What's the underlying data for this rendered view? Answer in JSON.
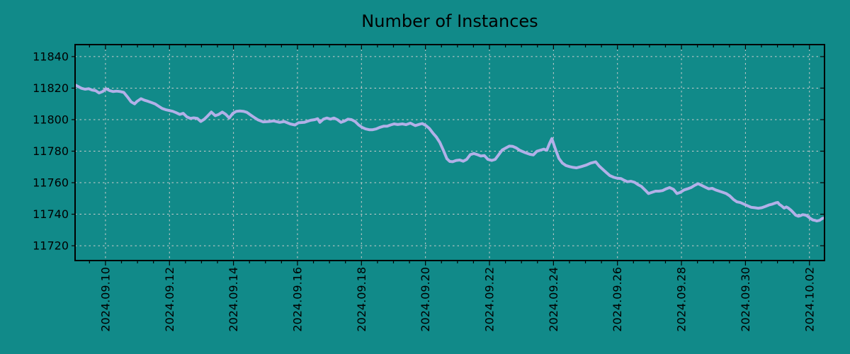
{
  "colors": {
    "background": "#118A89",
    "line": "#B2B0E8",
    "grid": "#CDCDCD",
    "axis": "#000000",
    "text": "#000000"
  },
  "chart_data": {
    "type": "line",
    "title": "Number of Instances",
    "xlabel": "",
    "ylabel": "",
    "x_unit": "days since 2024-09-09 00:00",
    "xlim": [
      0.05,
      23.47
    ],
    "ylim": [
      11710.6,
      11847.6
    ],
    "grid": true,
    "legend": "none",
    "y_ticks": [
      11720,
      11740,
      11760,
      11780,
      11800,
      11820,
      11840
    ],
    "x_ticks": [
      {
        "day": 1,
        "label": "2024.09.10"
      },
      {
        "day": 3,
        "label": "2024.09.12"
      },
      {
        "day": 5,
        "label": "2024.09.14"
      },
      {
        "day": 7,
        "label": "2024.09.16"
      },
      {
        "day": 9,
        "label": "2024.09.18"
      },
      {
        "day": 11,
        "label": "2024.09.20"
      },
      {
        "day": 13,
        "label": "2024.09.22"
      },
      {
        "day": 15,
        "label": "2024.09.24"
      },
      {
        "day": 17,
        "label": "2024.09.26"
      },
      {
        "day": 19,
        "label": "2024.09.28"
      },
      {
        "day": 21,
        "label": "2024.09.30"
      },
      {
        "day": 23,
        "label": "2024.10.02"
      }
    ],
    "minor_tick_interval_days": 0.5,
    "series": [
      {
        "name": "instances",
        "color": "#B2B0E8",
        "points": [
          [
            0.07,
            11821.8
          ],
          [
            0.25,
            11819.9
          ],
          [
            0.36,
            11819.3
          ],
          [
            0.47,
            11819.6
          ],
          [
            0.58,
            11818.8
          ],
          [
            0.69,
            11818.4
          ],
          [
            0.8,
            11816.9
          ],
          [
            0.91,
            11817.8
          ],
          [
            1.02,
            11819.6
          ],
          [
            1.13,
            11818.4
          ],
          [
            1.24,
            11817.8
          ],
          [
            1.35,
            11818.1
          ],
          [
            1.46,
            11817.8
          ],
          [
            1.57,
            11817.3
          ],
          [
            1.69,
            11814.3
          ],
          [
            1.8,
            11811.3
          ],
          [
            1.91,
            11810.0
          ],
          [
            1.99,
            11811.6
          ],
          [
            2.11,
            11813.3
          ],
          [
            2.22,
            11812.3
          ],
          [
            2.33,
            11811.6
          ],
          [
            2.44,
            11810.8
          ],
          [
            2.55,
            11810.0
          ],
          [
            2.66,
            11808.5
          ],
          [
            2.77,
            11807.1
          ],
          [
            2.88,
            11806.3
          ],
          [
            2.99,
            11805.8
          ],
          [
            3.1,
            11805.3
          ],
          [
            3.21,
            11804.4
          ],
          [
            3.32,
            11803.3
          ],
          [
            3.43,
            11804.0
          ],
          [
            3.54,
            11801.8
          ],
          [
            3.65,
            11800.8
          ],
          [
            3.76,
            11801.1
          ],
          [
            3.87,
            11800.8
          ],
          [
            3.98,
            11798.8
          ],
          [
            4.09,
            11800.3
          ],
          [
            4.2,
            11802.5
          ],
          [
            4.31,
            11804.8
          ],
          [
            4.43,
            11802.5
          ],
          [
            4.54,
            11803.3
          ],
          [
            4.65,
            11804.8
          ],
          [
            4.76,
            11803.3
          ],
          [
            4.87,
            11801.0
          ],
          [
            4.98,
            11804.0
          ],
          [
            5.09,
            11805.3
          ],
          [
            5.2,
            11805.5
          ],
          [
            5.31,
            11805.3
          ],
          [
            5.42,
            11804.6
          ],
          [
            5.53,
            11803.0
          ],
          [
            5.64,
            11801.5
          ],
          [
            5.77,
            11799.8
          ],
          [
            5.93,
            11798.6
          ],
          [
            6.11,
            11798.8
          ],
          [
            6.26,
            11799.2
          ],
          [
            6.44,
            11798.3
          ],
          [
            6.59,
            11798.8
          ],
          [
            6.77,
            11797.3
          ],
          [
            6.92,
            11796.6
          ],
          [
            7.03,
            11798.0
          ],
          [
            7.21,
            11798.3
          ],
          [
            7.41,
            11799.6
          ],
          [
            7.54,
            11800.0
          ],
          [
            7.63,
            11800.6
          ],
          [
            7.7,
            11798.3
          ],
          [
            7.81,
            11800.3
          ],
          [
            7.92,
            11801.0
          ],
          [
            8.03,
            11800.3
          ],
          [
            8.14,
            11801.0
          ],
          [
            8.25,
            11800.0
          ],
          [
            8.36,
            11798.3
          ],
          [
            8.47,
            11799.1
          ],
          [
            8.58,
            11800.3
          ],
          [
            8.69,
            11800.0
          ],
          [
            8.8,
            11798.8
          ],
          [
            8.91,
            11796.6
          ],
          [
            9.02,
            11795.1
          ],
          [
            9.13,
            11794.1
          ],
          [
            9.24,
            11793.6
          ],
          [
            9.35,
            11793.6
          ],
          [
            9.46,
            11794.1
          ],
          [
            9.57,
            11795.1
          ],
          [
            9.69,
            11795.8
          ],
          [
            9.8,
            11795.8
          ],
          [
            9.91,
            11796.6
          ],
          [
            10.02,
            11797.3
          ],
          [
            10.13,
            11796.9
          ],
          [
            10.28,
            11797.3
          ],
          [
            10.39,
            11796.8
          ],
          [
            10.53,
            11797.8
          ],
          [
            10.68,
            11796.2
          ],
          [
            10.81,
            11797.0
          ],
          [
            10.9,
            11797.5
          ],
          [
            11.01,
            11796.3
          ],
          [
            11.12,
            11794.4
          ],
          [
            11.23,
            11791.5
          ],
          [
            11.34,
            11789.0
          ],
          [
            11.45,
            11785.5
          ],
          [
            11.56,
            11780.5
          ],
          [
            11.67,
            11775.2
          ],
          [
            11.76,
            11773.5
          ],
          [
            11.85,
            11773.3
          ],
          [
            11.96,
            11774.1
          ],
          [
            12.07,
            11774.4
          ],
          [
            12.18,
            11773.6
          ],
          [
            12.29,
            11774.8
          ],
          [
            12.4,
            11777.8
          ],
          [
            12.51,
            11778.5
          ],
          [
            12.62,
            11777.8
          ],
          [
            12.73,
            11776.9
          ],
          [
            12.84,
            11777.2
          ],
          [
            12.95,
            11774.8
          ],
          [
            13.07,
            11774.1
          ],
          [
            13.18,
            11774.8
          ],
          [
            13.29,
            11777.8
          ],
          [
            13.4,
            11780.8
          ],
          [
            13.51,
            11782.0
          ],
          [
            13.62,
            11783.2
          ],
          [
            13.73,
            11783.0
          ],
          [
            13.84,
            11782.0
          ],
          [
            13.95,
            11780.5
          ],
          [
            14.11,
            11779.1
          ],
          [
            14.26,
            11778.0
          ],
          [
            14.37,
            11777.6
          ],
          [
            14.48,
            11779.9
          ],
          [
            14.59,
            11780.6
          ],
          [
            14.7,
            11781.3
          ],
          [
            14.79,
            11780.6
          ],
          [
            14.88,
            11785.0
          ],
          [
            14.95,
            11788.0
          ],
          [
            15.06,
            11781.3
          ],
          [
            15.17,
            11775.4
          ],
          [
            15.28,
            11772.4
          ],
          [
            15.39,
            11770.9
          ],
          [
            15.5,
            11770.2
          ],
          [
            15.61,
            11769.7
          ],
          [
            15.72,
            11769.4
          ],
          [
            15.87,
            11770.2
          ],
          [
            16.03,
            11771.2
          ],
          [
            16.16,
            11772.4
          ],
          [
            16.32,
            11773.2
          ],
          [
            16.43,
            11770.5
          ],
          [
            16.54,
            11768.5
          ],
          [
            16.65,
            11766.5
          ],
          [
            16.76,
            11764.5
          ],
          [
            16.89,
            11763.4
          ],
          [
            17.0,
            11762.8
          ],
          [
            17.11,
            11762.6
          ],
          [
            17.2,
            11761.6
          ],
          [
            17.31,
            11760.6
          ],
          [
            17.42,
            11760.9
          ],
          [
            17.53,
            11760.3
          ],
          [
            17.64,
            11758.8
          ],
          [
            17.75,
            11757.6
          ],
          [
            17.86,
            11755.4
          ],
          [
            17.97,
            11753.1
          ],
          [
            18.08,
            11753.9
          ],
          [
            18.19,
            11754.6
          ],
          [
            18.3,
            11754.6
          ],
          [
            18.41,
            11755.0
          ],
          [
            18.52,
            11756.1
          ],
          [
            18.63,
            11756.9
          ],
          [
            18.75,
            11755.8
          ],
          [
            18.86,
            11753.1
          ],
          [
            18.97,
            11753.9
          ],
          [
            19.08,
            11755.4
          ],
          [
            19.19,
            11756.1
          ],
          [
            19.3,
            11756.9
          ],
          [
            19.41,
            11758.3
          ],
          [
            19.52,
            11759.4
          ],
          [
            19.63,
            11758.3
          ],
          [
            19.74,
            11757.2
          ],
          [
            19.85,
            11756.1
          ],
          [
            19.96,
            11756.4
          ],
          [
            20.07,
            11755.4
          ],
          [
            20.18,
            11754.6
          ],
          [
            20.29,
            11753.9
          ],
          [
            20.4,
            11753.1
          ],
          [
            20.51,
            11751.6
          ],
          [
            20.62,
            11749.4
          ],
          [
            20.73,
            11747.9
          ],
          [
            20.84,
            11747.4
          ],
          [
            20.95,
            11746.4
          ],
          [
            21.07,
            11745.3
          ],
          [
            21.18,
            11744.4
          ],
          [
            21.29,
            11744.1
          ],
          [
            21.4,
            11743.8
          ],
          [
            21.51,
            11744.1
          ],
          [
            21.62,
            11744.9
          ],
          [
            21.73,
            11745.8
          ],
          [
            21.84,
            11746.4
          ],
          [
            21.95,
            11747.2
          ],
          [
            22.01,
            11747.5
          ],
          [
            22.06,
            11746.2
          ],
          [
            22.12,
            11745.4
          ],
          [
            22.21,
            11743.9
          ],
          [
            22.28,
            11744.6
          ],
          [
            22.34,
            11743.9
          ],
          [
            22.43,
            11742.4
          ],
          [
            22.5,
            11740.9
          ],
          [
            22.57,
            11739.4
          ],
          [
            22.65,
            11738.7
          ],
          [
            22.72,
            11739.1
          ],
          [
            22.79,
            11739.7
          ],
          [
            22.88,
            11739.4
          ],
          [
            22.94,
            11738.7
          ],
          [
            23.01,
            11737.6
          ],
          [
            23.1,
            11736.4
          ],
          [
            23.17,
            11736.1
          ],
          [
            23.23,
            11735.7
          ],
          [
            23.32,
            11736.1
          ],
          [
            23.39,
            11737.2
          ],
          [
            23.45,
            11737.6
          ]
        ]
      }
    ]
  }
}
